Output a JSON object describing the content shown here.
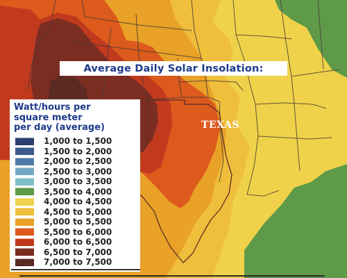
{
  "map": {
    "title": "Average Daily Solar Insolation:",
    "state_label": "TEXAS"
  },
  "legend": {
    "title_lines": [
      "Watt/hours per",
      "square meter",
      "per day (average)"
    ],
    "items": [
      {
        "label": "1,000 to 1,500",
        "color": "#2a3f6e"
      },
      {
        "label": "1,500 to 2,000",
        "color": "#3c5a8c"
      },
      {
        "label": "2,000 to 2,500",
        "color": "#4f7bab"
      },
      {
        "label": "2,500 to 3,000",
        "color": "#73a6c6"
      },
      {
        "label": "3,000 to 3,500",
        "color": "#7fbfc4"
      },
      {
        "label": "3,500 to 4,000",
        "color": "#5e9a48"
      },
      {
        "label": "4,000 to 4,500",
        "color": "#f0d24a"
      },
      {
        "label": "4,500 to 5,000",
        "color": "#efbe3a"
      },
      {
        "label": "5,000 to 5,500",
        "color": "#e9a127"
      },
      {
        "label": "5,500 to 6,000",
        "color": "#dc5a1c"
      },
      {
        "label": "6,000 to 6,500",
        "color": "#c13a1e"
      },
      {
        "label": "6,500 to 7,000",
        "color": "#7c2d22"
      },
      {
        "label": "7,000 to 7,500",
        "color": "#5a2a23"
      }
    ]
  }
}
